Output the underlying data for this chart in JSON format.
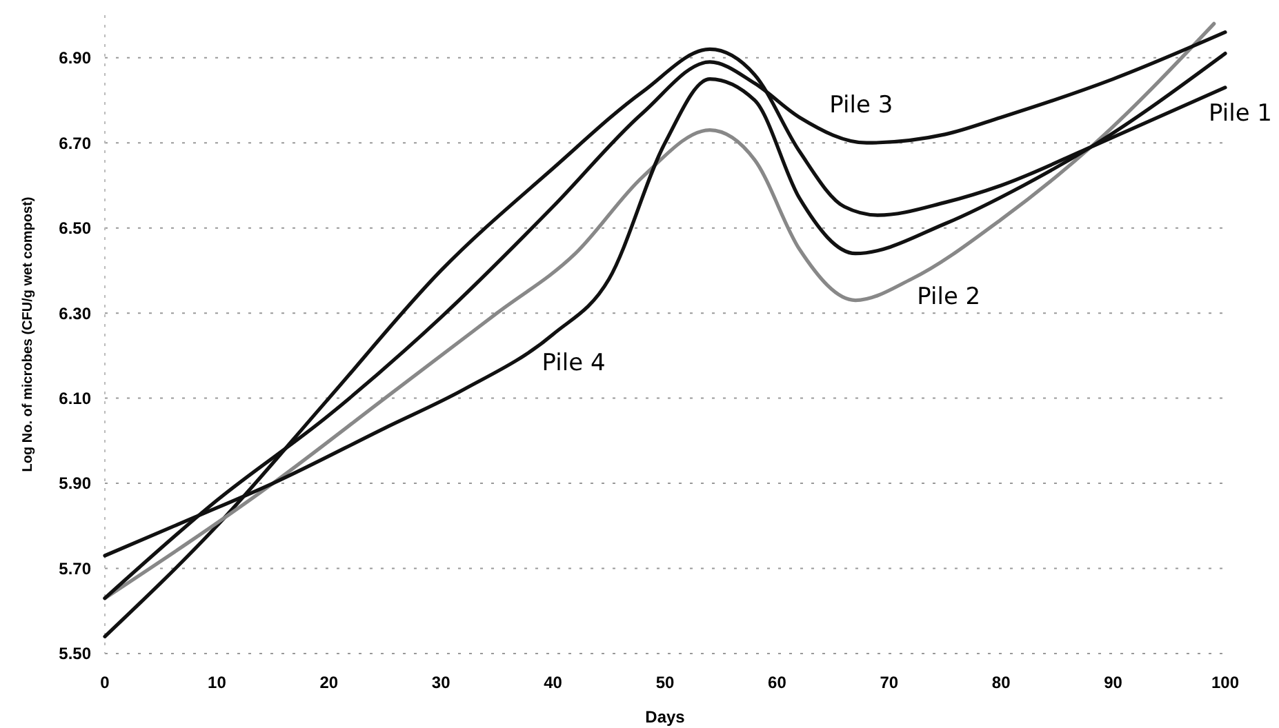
{
  "chart_data": {
    "type": "line",
    "xlabel": "Days",
    "ylabel": "Log No. of microbes (CFU/g wet compost)",
    "xlim": [
      0,
      100
    ],
    "ylim": [
      5.5,
      7.0
    ],
    "xticks": [
      0,
      10,
      20,
      30,
      40,
      50,
      60,
      70,
      80,
      90,
      100
    ],
    "yticks": [
      {
        "value": 5.5,
        "label": "5.50"
      },
      {
        "value": 5.7,
        "label": "5.70"
      },
      {
        "value": 5.9,
        "label": "5.90"
      },
      {
        "value": 6.1,
        "label": "6.10"
      },
      {
        "value": 6.3,
        "label": "6.30"
      },
      {
        "value": 6.5,
        "label": "6.50"
      },
      {
        "value": 6.7,
        "label": "6.70"
      },
      {
        "value": 6.9,
        "label": "6.90"
      }
    ],
    "grid": "y",
    "legend": false,
    "marker": "none",
    "line_style": "solid",
    "series": [
      {
        "name": "Pile 1",
        "color": "#111111",
        "x": [
          0,
          10,
          20,
          30,
          40,
          48,
          54,
          58,
          62,
          66,
          69,
          75,
          80,
          88,
          100
        ],
        "values": [
          5.54,
          5.8,
          6.1,
          6.4,
          6.64,
          6.82,
          6.92,
          6.86,
          6.68,
          6.55,
          6.53,
          6.56,
          6.6,
          6.69,
          6.83
        ]
      },
      {
        "name": "Pile 2",
        "color": "#888888",
        "x": [
          0,
          15,
          25,
          35,
          42,
          48,
          54,
          58,
          62,
          67,
          72,
          80,
          88,
          99
        ],
        "values": [
          5.63,
          5.9,
          6.1,
          6.3,
          6.44,
          6.62,
          6.73,
          6.66,
          6.45,
          6.33,
          6.38,
          6.52,
          6.69,
          6.98
        ]
      },
      {
        "name": "Pile 3",
        "color": "#111111",
        "x": [
          0,
          10,
          20,
          30,
          40,
          48,
          54,
          58,
          62,
          68,
          75,
          80,
          90,
          100
        ],
        "values": [
          5.63,
          5.86,
          6.06,
          6.29,
          6.55,
          6.77,
          6.89,
          6.84,
          6.76,
          6.7,
          6.72,
          6.76,
          6.85,
          6.96
        ]
      },
      {
        "name": "Pile 4",
        "color": "#111111",
        "x": [
          0,
          8,
          15,
          25,
          32,
          40,
          45,
          50,
          54,
          58,
          62,
          67,
          75,
          82,
          88,
          100
        ],
        "values": [
          5.73,
          5.82,
          5.9,
          6.03,
          6.12,
          6.25,
          6.38,
          6.7,
          6.85,
          6.8,
          6.57,
          6.44,
          6.51,
          6.6,
          6.69,
          6.91
        ]
      }
    ]
  }
}
